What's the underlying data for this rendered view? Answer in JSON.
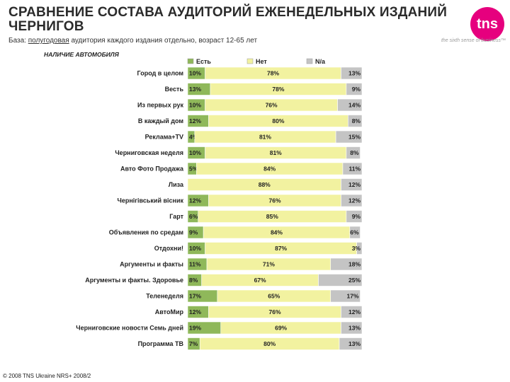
{
  "header": {
    "title": "СРАВНЕНИЕ СОСТАВА АУДИТОРИЙ ЕЖЕНЕДЕЛЬНЫХ ИЗДАНИЙ ЧЕРНИГОВ",
    "base_label": "База:",
    "base_underlined": "полугодовая",
    "base_rest": "аудитория каждого издания отдельно, возраст 12-65 лет",
    "subtitle": "НАЛИЧИЕ АВТОМОБИЛЯ"
  },
  "logo": {
    "text": "tns",
    "slogan": "the sixth sense of business™",
    "color": "#e6007e"
  },
  "footer": {
    "text": "© 2008 TNS Ukraine NRS+ 2008/2"
  },
  "chart_data": {
    "type": "bar",
    "stacked": true,
    "orientation": "horizontal",
    "percent_scale": [
      0,
      100
    ],
    "legend_position": "top",
    "categories": [
      "Город в целом",
      "Весть",
      "Из первых рук",
      "В каждый дом",
      "Реклама+TV",
      "Черниговская неделя",
      "Авто Фото Продажа",
      "Лиза",
      "Чернiгiвський вiсник",
      "Гарт",
      "Объявления по средам",
      "Отдохни!",
      "Аргументы и факты",
      "Аргументы и факты. Здоровье",
      "Теленеделя",
      "АвтоМир",
      "Черниговские новости Семь дней",
      "Программа ТВ"
    ],
    "series": [
      {
        "name": "Есть",
        "color": "#8fb85a",
        "values": [
          10,
          13,
          10,
          12,
          4,
          10,
          5,
          null,
          12,
          6,
          9,
          10,
          11,
          8,
          17,
          12,
          19,
          7
        ],
        "labels": [
          "10%",
          "13%",
          "10%",
          "12%",
          "4%",
          "10%",
          "5%",
          "",
          "12%",
          "6%",
          "9%",
          "10%",
          "11%",
          "8%",
          "17%",
          "12%",
          "19%",
          "7%"
        ]
      },
      {
        "name": "Нет",
        "color": "#f2f2a0",
        "values": [
          78,
          78,
          76,
          80,
          81,
          81,
          84,
          88,
          76,
          85,
          84,
          87,
          71,
          67,
          65,
          76,
          69,
          80
        ],
        "labels": [
          "78%",
          "78%",
          "76%",
          "80%",
          "81%",
          "81%",
          "84%",
          "88%",
          "76%",
          "85%",
          "84%",
          "87%",
          "71%",
          "67%",
          "65%",
          "76%",
          "69%",
          "80%"
        ]
      },
      {
        "name": "N/a",
        "color": "#c4c4c4",
        "values": [
          13,
          9,
          14,
          8,
          15,
          8,
          11,
          12,
          12,
          9,
          6,
          3,
          18,
          25,
          17,
          12,
          13,
          13
        ],
        "labels": [
          "13%",
          "9%",
          "14%",
          "8%",
          "15%",
          "8%",
          "11%",
          "12%",
          "12%",
          "9%",
          "6%",
          "3%",
          "18%",
          "25%",
          "17%",
          "12%",
          "13%",
          "13%"
        ]
      }
    ]
  }
}
